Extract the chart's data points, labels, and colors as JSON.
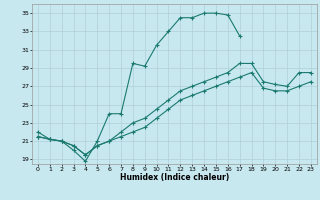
{
  "xlabel": "Humidex (Indice chaleur)",
  "bg_color": "#c8e8f0",
  "grid_color": "#b0cfd8",
  "line_color": "#1a7a6e",
  "xlim": [
    -0.5,
    23.5
  ],
  "ylim": [
    18.5,
    36
  ],
  "yticks": [
    19,
    21,
    23,
    25,
    27,
    29,
    31,
    33,
    35
  ],
  "xticks": [
    0,
    1,
    2,
    3,
    4,
    5,
    6,
    7,
    8,
    9,
    10,
    11,
    12,
    13,
    14,
    15,
    16,
    17,
    18,
    19,
    20,
    21,
    22,
    23
  ],
  "line1_x": [
    0,
    1,
    2,
    3,
    4,
    5,
    6,
    7,
    8,
    9,
    10,
    11,
    12,
    13,
    14,
    15,
    16,
    17
  ],
  "line1_y": [
    22,
    21.2,
    21,
    20,
    18.8,
    21,
    24,
    24,
    29.5,
    29.2,
    31.5,
    33,
    34.5,
    34.5,
    35,
    35,
    34.8,
    32.5
  ],
  "line2_x": [
    0,
    1,
    2,
    3,
    4,
    5,
    6,
    7,
    8,
    9,
    10,
    11,
    12,
    13,
    14,
    15,
    16,
    17,
    18,
    19,
    20,
    21,
    22,
    23
  ],
  "line2_y": [
    21.5,
    21.2,
    21,
    20.5,
    19.5,
    20.5,
    21,
    22,
    23,
    23.5,
    24.5,
    25.5,
    26.5,
    27,
    27.5,
    28,
    28.5,
    29.5,
    29.5,
    27.5,
    27.2,
    27,
    28.5,
    28.5
  ],
  "line3_x": [
    0,
    1,
    2,
    3,
    4,
    5,
    6,
    7,
    8,
    9,
    10,
    11,
    12,
    13,
    14,
    15,
    16,
    17,
    18,
    19,
    20,
    21,
    22,
    23
  ],
  "line3_y": [
    21.5,
    21.2,
    21,
    20.5,
    19.5,
    20.5,
    21,
    21.5,
    22,
    22.5,
    23.5,
    24.5,
    25.5,
    26,
    26.5,
    27,
    27.5,
    28,
    28.5,
    26.8,
    26.5,
    26.5,
    27,
    27.5
  ]
}
